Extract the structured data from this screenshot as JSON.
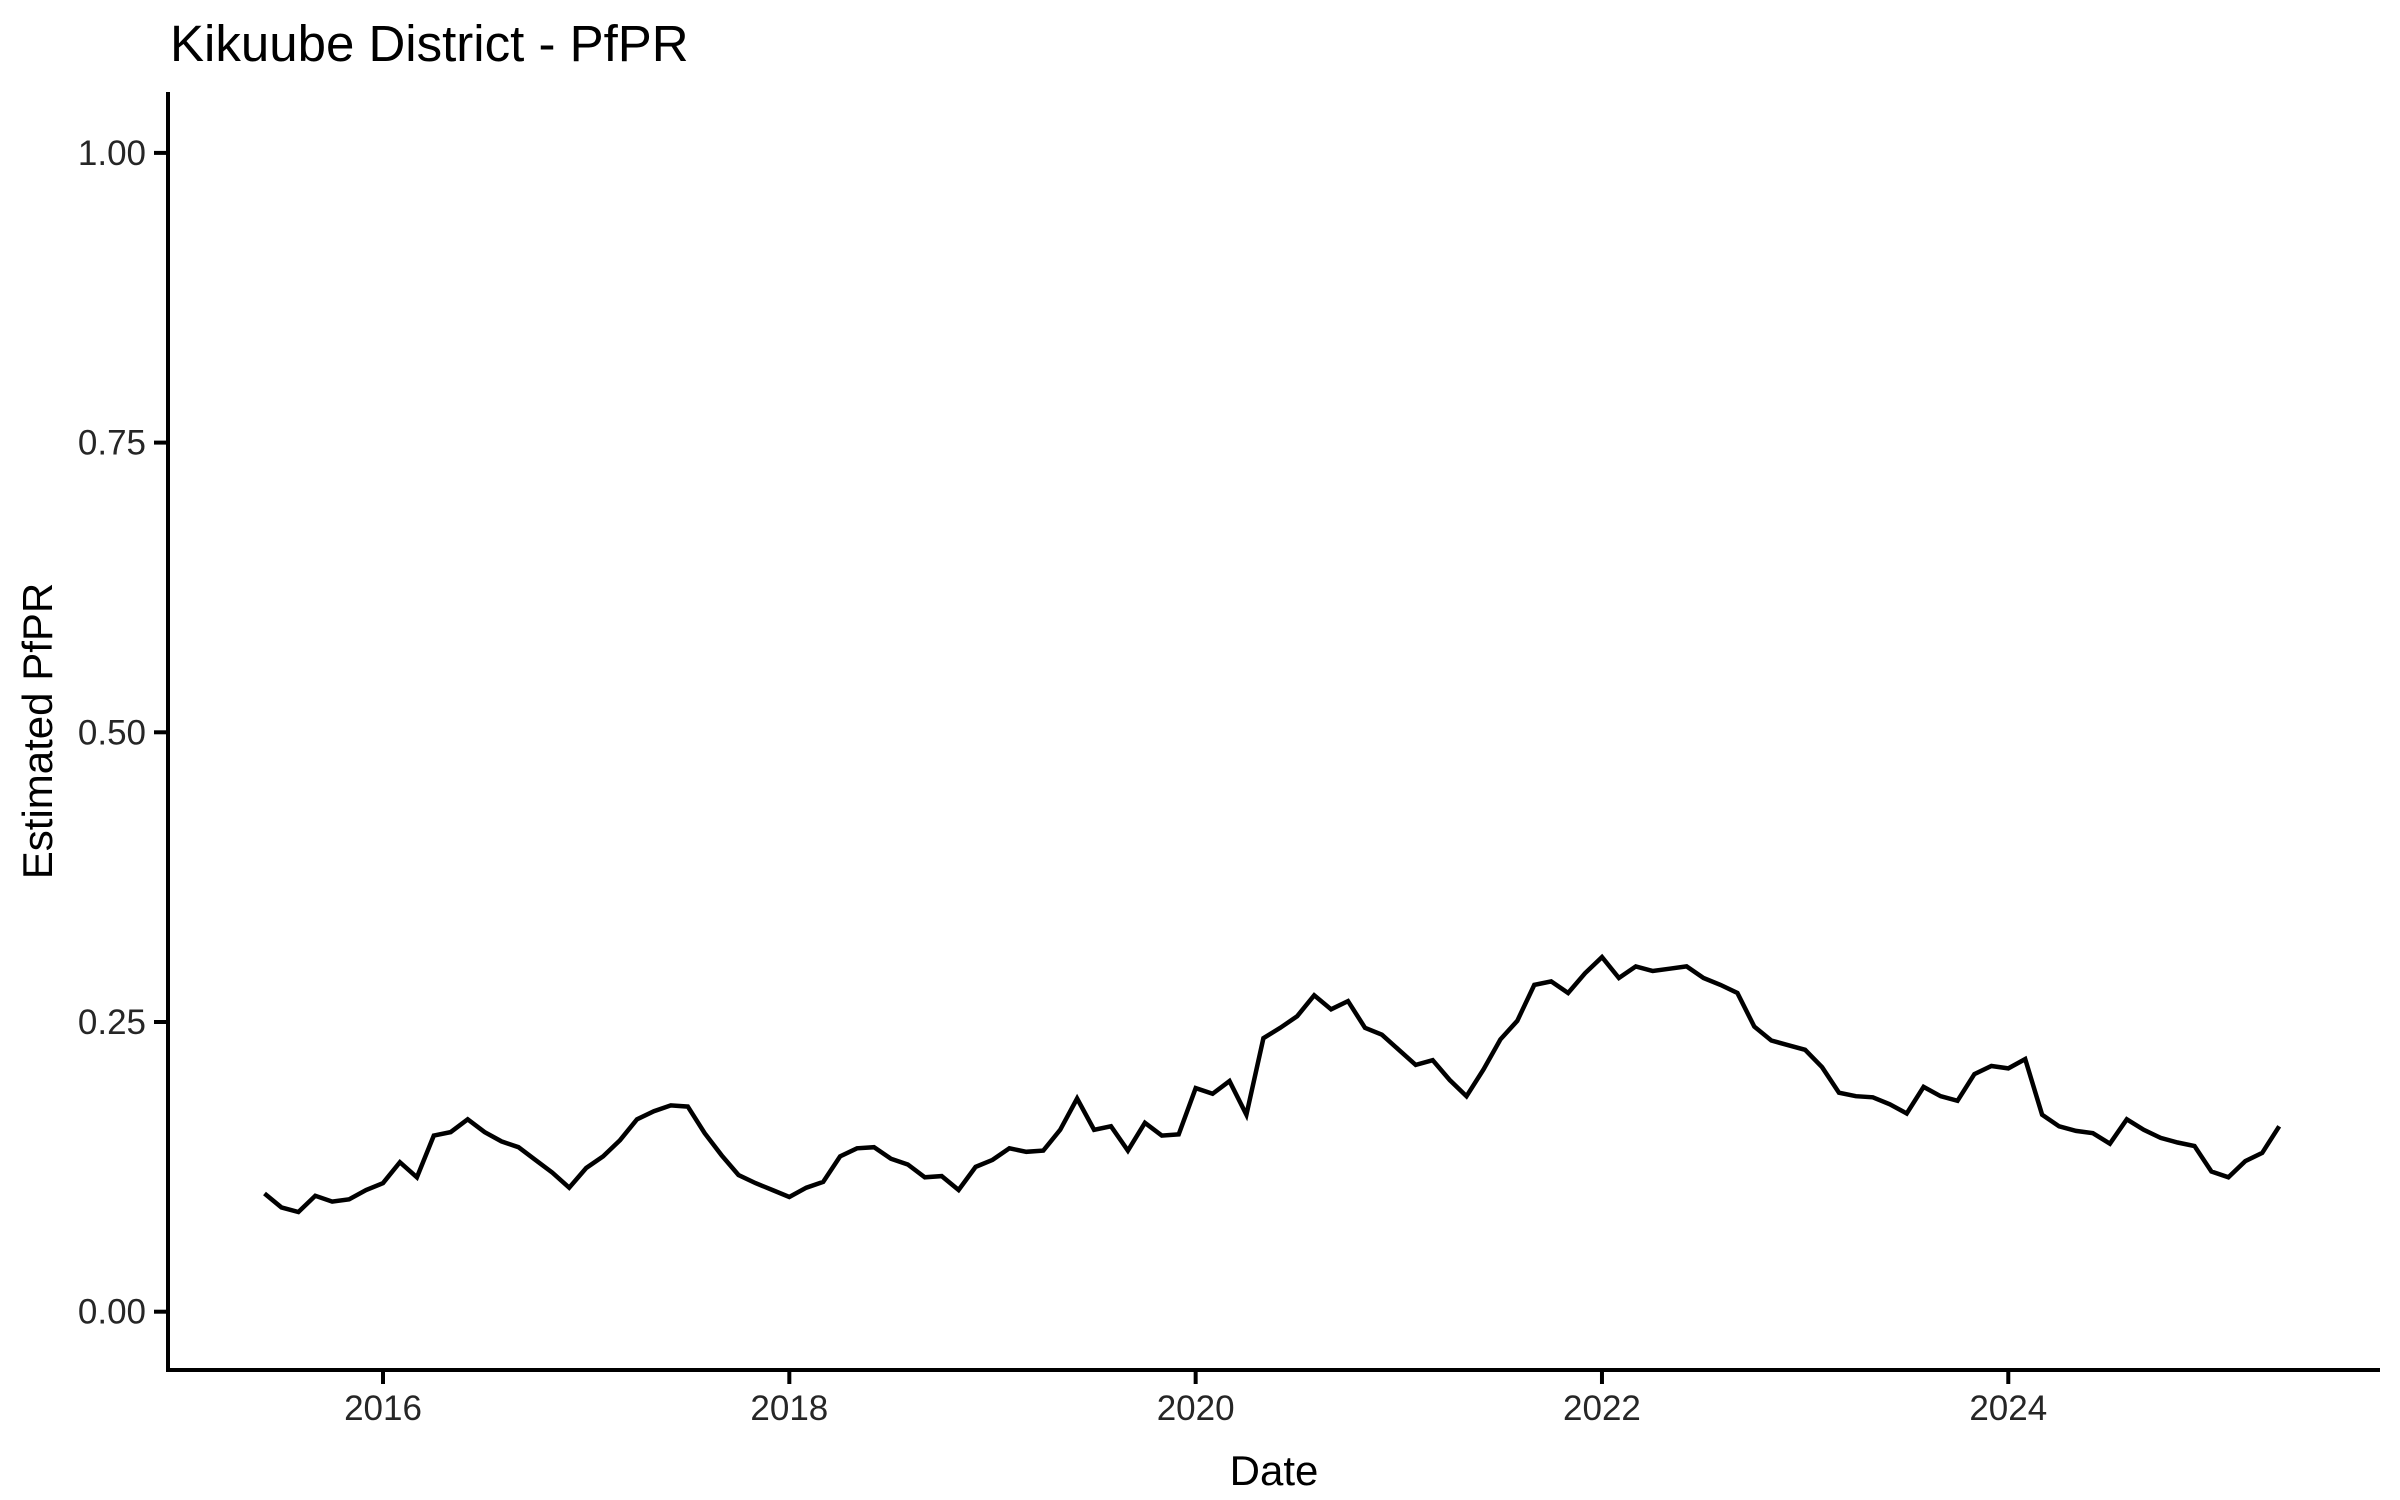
{
  "chart_data": {
    "type": "line",
    "title": "Kikuube District - PfPR",
    "xlabel": "Date",
    "ylabel": "Estimated PfPR",
    "series_name": "Estimated PfPR",
    "line_color": "#000000",
    "background": "#ffffff",
    "grid": false,
    "legend": "none",
    "ylim": [
      0,
      1
    ],
    "y_tick_values": [
      0,
      0.25,
      0.5,
      0.75,
      1
    ],
    "y_tick_labels": [
      "0.00",
      "0.25",
      "0.50",
      "0.75",
      "1.00"
    ],
    "x_tick_years": [
      2016,
      2018,
      2020,
      2022,
      2024
    ],
    "x_tick_labels": [
      "2016",
      "2018",
      "2020",
      "2022",
      "2024"
    ],
    "frequency": "monthly",
    "start_month": "2015-06",
    "end_month": "2025-05",
    "dates": [
      "2015-06",
      "2015-07",
      "2015-08",
      "2015-09",
      "2015-10",
      "2015-11",
      "2015-12",
      "2016-01",
      "2016-02",
      "2016-03",
      "2016-04",
      "2016-05",
      "2016-06",
      "2016-07",
      "2016-08",
      "2016-09",
      "2016-10",
      "2016-11",
      "2016-12",
      "2017-01",
      "2017-02",
      "2017-03",
      "2017-04",
      "2017-05",
      "2017-06",
      "2017-07",
      "2017-08",
      "2017-09",
      "2017-10",
      "2017-11",
      "2017-12",
      "2018-01",
      "2018-02",
      "2018-03",
      "2018-04",
      "2018-05",
      "2018-06",
      "2018-07",
      "2018-08",
      "2018-09",
      "2018-10",
      "2018-11",
      "2018-12",
      "2019-01",
      "2019-02",
      "2019-03",
      "2019-04",
      "2019-05",
      "2019-06",
      "2019-07",
      "2019-08",
      "2019-09",
      "2019-10",
      "2019-11",
      "2019-12",
      "2020-01",
      "2020-02",
      "2020-03",
      "2020-04",
      "2020-05",
      "2020-06",
      "2020-07",
      "2020-08",
      "2020-09",
      "2020-10",
      "2020-11",
      "2020-12",
      "2021-01",
      "2021-02",
      "2021-03",
      "2021-04",
      "2021-05",
      "2021-06",
      "2021-07",
      "2021-08",
      "2021-09",
      "2021-10",
      "2021-11",
      "2021-12",
      "2022-01",
      "2022-02",
      "2022-03",
      "2022-04",
      "2022-05",
      "2022-06",
      "2022-07",
      "2022-08",
      "2022-09",
      "2022-10",
      "2022-11",
      "2022-12",
      "2023-01",
      "2023-02",
      "2023-03",
      "2023-04",
      "2023-05",
      "2023-06",
      "2023-07",
      "2023-08",
      "2023-09",
      "2023-10",
      "2023-11",
      "2023-12",
      "2024-01",
      "2024-02",
      "2024-03",
      "2024-04",
      "2024-05",
      "2024-06",
      "2024-07",
      "2024-08",
      "2024-09",
      "2024-10",
      "2024-11",
      "2024-12",
      "2025-01",
      "2025-02",
      "2025-03",
      "2025-04",
      "2025-05"
    ],
    "values": [
      0.102,
      0.09,
      0.086,
      0.1,
      0.095,
      0.097,
      0.105,
      0.111,
      0.129,
      0.116,
      0.152,
      0.155,
      0.166,
      0.155,
      0.147,
      0.142,
      0.131,
      0.12,
      0.107,
      0.124,
      0.134,
      0.148,
      0.166,
      0.173,
      0.178,
      0.177,
      0.154,
      0.135,
      0.118,
      0.111,
      0.105,
      0.099,
      0.107,
      0.112,
      0.134,
      0.141,
      0.142,
      0.132,
      0.127,
      0.116,
      0.117,
      0.105,
      0.125,
      0.131,
      0.141,
      0.138,
      0.139,
      0.157,
      0.184,
      0.157,
      0.16,
      0.139,
      0.163,
      0.152,
      0.153,
      0.193,
      0.188,
      0.199,
      0.17,
      0.236,
      0.245,
      0.255,
      0.273,
      0.261,
      0.268,
      0.245,
      0.239,
      0.226,
      0.213,
      0.217,
      0.2,
      0.186,
      0.209,
      0.235,
      0.251,
      0.282,
      0.285,
      0.275,
      0.292,
      0.306,
      0.288,
      0.298,
      0.294,
      0.296,
      0.298,
      0.288,
      0.282,
      0.275,
      0.246,
      0.234,
      0.23,
      0.226,
      0.211,
      0.189,
      0.186,
      0.185,
      0.179,
      0.171,
      0.194,
      0.186,
      0.182,
      0.205,
      0.212,
      0.21,
      0.218,
      0.17,
      0.16,
      0.156,
      0.154,
      0.145,
      0.166,
      0.157,
      0.15,
      0.146,
      0.143,
      0.121,
      0.116,
      0.13,
      0.137,
      0.16
    ]
  }
}
